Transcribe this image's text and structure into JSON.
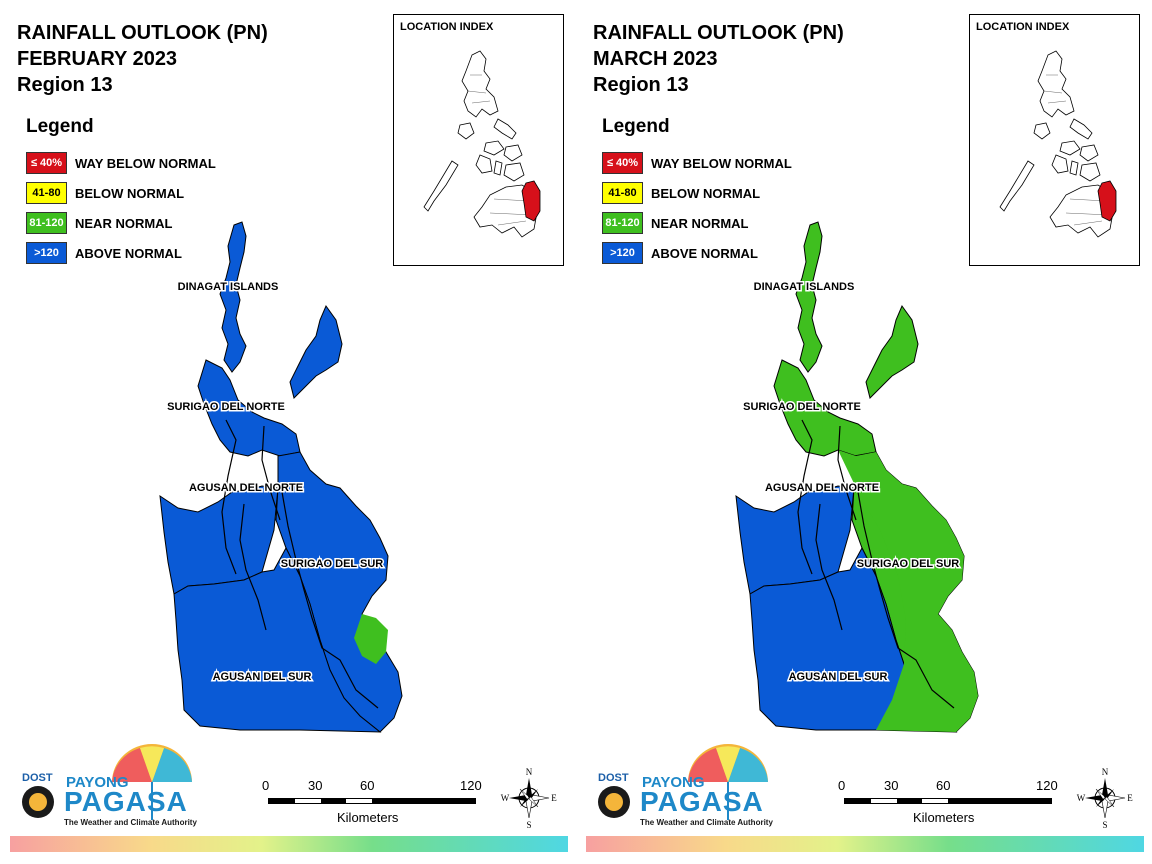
{
  "panels": [
    {
      "title_lines": [
        "RAINFALL OUTLOOK (PN)",
        "FEBRUARY 2023",
        "Region 13"
      ],
      "region_fill": {
        "dinagat_islands": "#0a5ad6",
        "surigao_del_norte": "#0a5ad6",
        "agusan_del_norte": "#0a5ad6",
        "surigao_del_sur": "#0a5ad6",
        "agusan_del_sur": "#0a5ad6",
        "surigao_del_sur_coast_patch": "#3fbf1f"
      }
    },
    {
      "title_lines": [
        "RAINFALL OUTLOOK (PN)",
        "MARCH 2023",
        "Region 13"
      ],
      "region_fill": {
        "dinagat_islands": "#3fbf1f",
        "surigao_del_norte": "#3fbf1f",
        "agusan_del_norte": "#0a5ad6",
        "surigao_del_sur": "#3fbf1f",
        "agusan_del_sur": "#0a5ad6",
        "east_coast_band": "#3fbf1f"
      }
    }
  ],
  "legend": {
    "title": "Legend",
    "items": [
      {
        "range": "≤ 40%",
        "label": "WAY BELOW NORMAL",
        "color": "#d6101a",
        "text_color": "#ffffff"
      },
      {
        "range": "41-80",
        "label": "BELOW NORMAL",
        "color": "#ffff00",
        "text_color": "#000000"
      },
      {
        "range": "81-120",
        "label": "NEAR NORMAL",
        "color": "#3fbf1f",
        "text_color": "#ffffff"
      },
      {
        "range": ">120",
        "label": "ABOVE NORMAL",
        "color": "#0a5ad6",
        "text_color": "#ffffff"
      }
    ]
  },
  "location_index": {
    "title": "LOCATION INDEX",
    "highlight_color": "#d6101a"
  },
  "provinces": {
    "dinagat": "DINAGAT ISLANDS",
    "surigao_norte": "SURIGAO DEL NORTE",
    "agusan_norte": "AGUSAN DEL NORTE",
    "surigao_sur": "SURIGAO DEL SUR",
    "agusan_sur": "AGUSAN DEL SUR"
  },
  "scale": {
    "ticks": [
      "0",
      "30",
      "60",
      "120"
    ],
    "unit": "Kilometers"
  },
  "compass": {
    "n": "N",
    "s": "S",
    "e": "E",
    "w": "W"
  },
  "logo": {
    "dost": "DOST",
    "payong": "PAYONG",
    "pagasa": "PAGASA",
    "tagline": "The Weather and Climate Authority"
  }
}
